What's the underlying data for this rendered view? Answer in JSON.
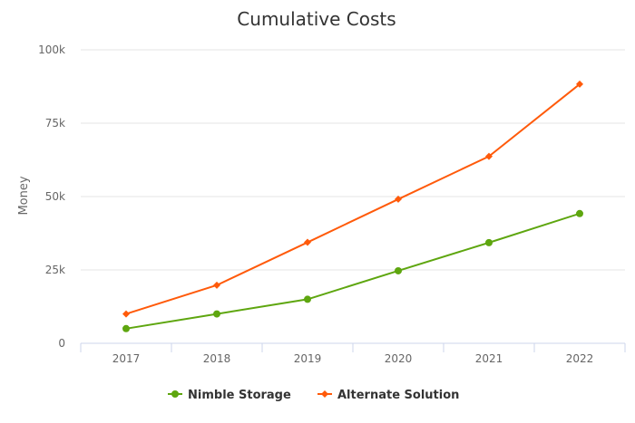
{
  "chart_data": {
    "type": "line",
    "title": "Cumulative Costs",
    "xlabel": "",
    "ylabel": "Money",
    "categories": [
      "2017",
      "2018",
      "2019",
      "2020",
      "2021",
      "2022"
    ],
    "ylim": [
      0,
      100000
    ],
    "yticks": [
      0,
      25000,
      50000,
      75000,
      100000
    ],
    "ytick_labels": [
      "0",
      "25k",
      "50k",
      "75k",
      "100k"
    ],
    "grid": true,
    "legend_position": "bottom",
    "series": [
      {
        "name": "Nimble Storage",
        "color": "#5ea60f",
        "marker": "circle",
        "values": [
          5000,
          10000,
          15000,
          24700,
          34300,
          44200
        ]
      },
      {
        "name": "Alternate Solution",
        "color": "#ff5a0a",
        "marker": "diamond",
        "values": [
          10000,
          19800,
          34400,
          49100,
          63700,
          88300
        ]
      }
    ]
  }
}
